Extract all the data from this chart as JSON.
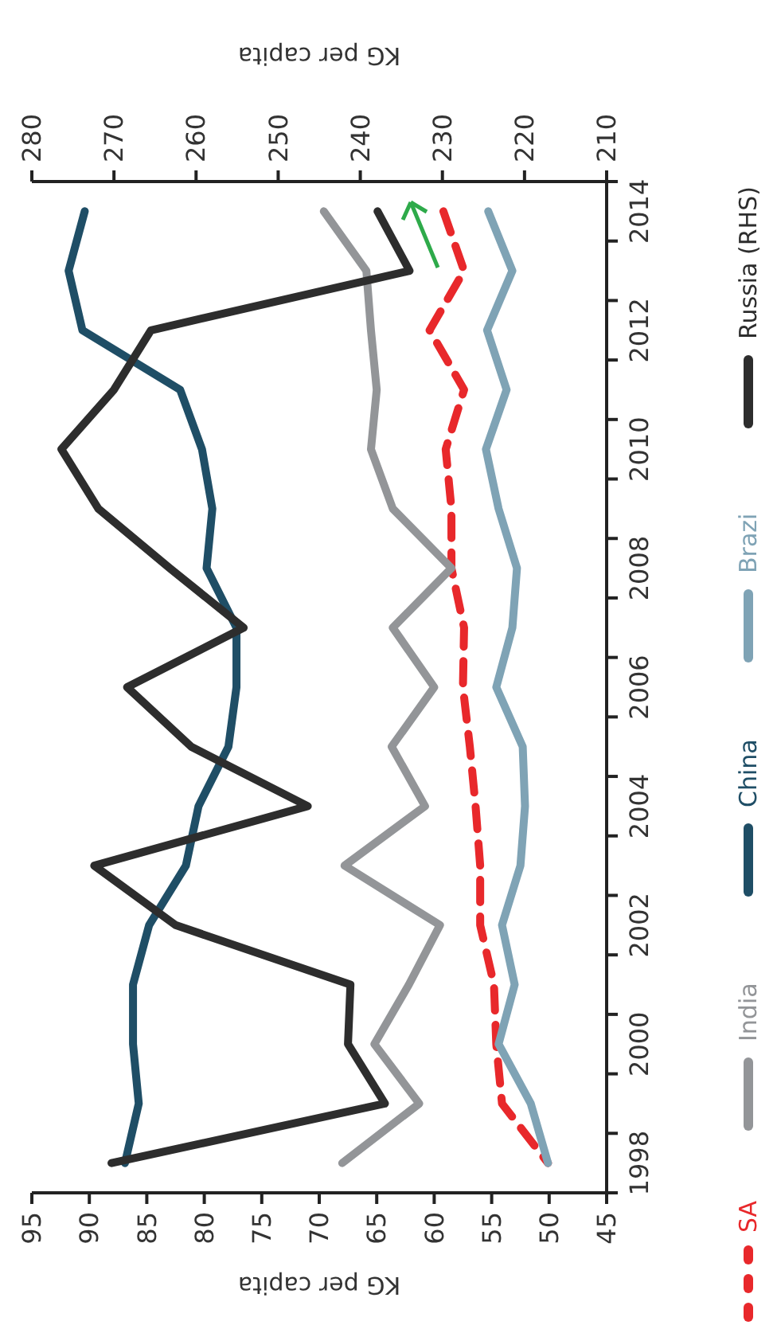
{
  "chart_data": {
    "type": "line",
    "orientation": "horizontal",
    "categories": [
      "2014",
      null,
      "2012",
      null,
      "2010",
      null,
      "2008",
      null,
      "2006",
      null,
      "2004",
      null,
      "2002",
      null,
      "2000",
      null,
      "1998"
    ],
    "xlabel": "KG per capita",
    "x2label": "KG per capita",
    "xlim": [
      95,
      45
    ],
    "xticks": [
      95,
      90,
      85,
      80,
      75,
      70,
      65,
      60,
      55,
      50,
      45
    ],
    "x2lim": [
      280,
      210
    ],
    "x2ticks": [
      280,
      270,
      260,
      250,
      240,
      230,
      220,
      210
    ],
    "grid": false,
    "legend": "right",
    "marker": "none",
    "series": [
      {
        "name": "SA",
        "color": "#e8282b",
        "line_style": "dashed",
        "values": [
          59.2,
          57.4,
          60.4,
          57.4,
          59.0,
          58.5,
          58.5,
          57.4,
          57.5,
          56.9,
          56.4,
          56.0,
          56.0,
          54.8,
          54.6,
          54.1,
          50.1
        ]
      },
      {
        "name": "India",
        "color": "#939598",
        "values": [
          69.6,
          65.9,
          65.5,
          65.0,
          65.5,
          63.6,
          58.5,
          63.6,
          60.0,
          63.7,
          60.8,
          67.8,
          59.5,
          62.2,
          65.2,
          61.3,
          68.0
        ]
      },
      {
        "name": "China",
        "color": "#1f4e66",
        "values": [
          90.4,
          91.8,
          90.6,
          82.1,
          80.2,
          79.3,
          79.8,
          77.2,
          77.2,
          77.9,
          80.5,
          81.6,
          84.8,
          86.2,
          86.2,
          85.7,
          86.9
        ]
      },
      {
        "name": "Brazi",
        "color": "#7fa3b5",
        "values": [
          55.3,
          53.2,
          55.4,
          53.7,
          55.5,
          54.4,
          52.8,
          53.2,
          54.6,
          52.3,
          52.1,
          52.5,
          54.1,
          53.0,
          54.4,
          51.6,
          50.1
        ]
      },
      {
        "name": "Russia (RHS)",
        "color": "#2d2d2d",
        "axis": "x2",
        "values": [
          237.9,
          234.0,
          265.5,
          270.0,
          276.4,
          271.9,
          263.2,
          254.2,
          268.4,
          260.6,
          246.4,
          272.4,
          262.5,
          241.2,
          241.5,
          237.0,
          270.3
        ]
      }
    ]
  }
}
